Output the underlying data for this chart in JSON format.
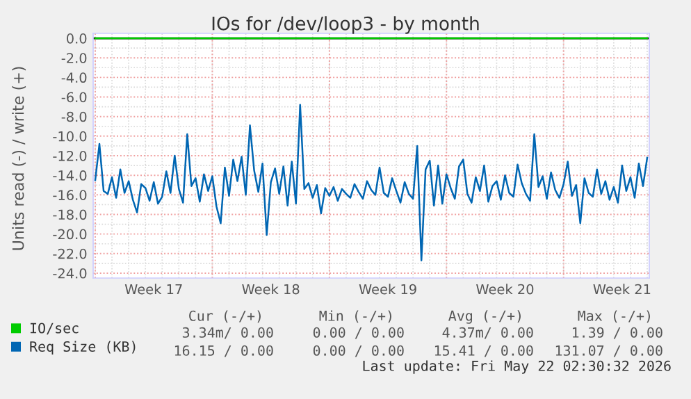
{
  "chart_data": {
    "type": "line",
    "title": "IOs for /dev/loop3 - by month",
    "ylabel": "Units read (-) / write (+)",
    "categories": [
      null,
      null,
      null,
      null,
      null,
      null,
      null,
      null,
      null,
      null,
      null,
      null,
      null,
      null,
      "Week 17",
      null,
      null,
      null,
      null,
      null,
      null,
      null,
      null,
      null,
      null,
      null,
      null,
      null,
      null,
      null,
      null,
      null,
      null,
      null,
      null,
      null,
      null,
      null,
      null,
      null,
      null,
      null,
      "Week 18",
      null,
      null,
      null,
      null,
      null,
      null,
      null,
      null,
      null,
      null,
      null,
      null,
      null,
      null,
      null,
      null,
      null,
      null,
      null,
      null,
      null,
      null,
      null,
      null,
      null,
      null,
      null,
      "Week 19",
      null,
      null,
      null,
      null,
      null,
      null,
      null,
      null,
      null,
      null,
      null,
      null,
      null,
      null,
      null,
      null,
      null,
      null,
      null,
      null,
      null,
      null,
      null,
      null,
      null,
      null,
      null,
      "Week 20",
      null,
      null,
      null,
      null,
      null,
      null,
      null,
      null,
      null,
      null,
      null,
      null,
      null,
      null,
      null,
      null,
      null,
      null,
      null,
      null,
      null,
      null,
      null,
      null,
      null,
      null,
      null,
      "Week 21",
      null,
      null,
      null,
      null,
      null,
      null
    ],
    "ylim": [
      -24.5,
      0.5
    ],
    "yticks": [
      {
        "value": 0,
        "label": "0.0"
      },
      {
        "value": -2,
        "label": "-2.0"
      },
      {
        "value": -4,
        "label": "-4.0"
      },
      {
        "value": -6,
        "label": "-6.0"
      },
      {
        "value": -8,
        "label": "-8.0"
      },
      {
        "value": -10,
        "label": "-10.0"
      },
      {
        "value": -12,
        "label": "-12.0"
      },
      {
        "value": -14,
        "label": "-14.0"
      },
      {
        "value": -16,
        "label": "-16.0"
      },
      {
        "value": -18,
        "label": "-18.0"
      },
      {
        "value": -20,
        "label": "-20.0"
      },
      {
        "value": -22,
        "label": "-22.0"
      },
      {
        "value": -24,
        "label": "-24.0"
      }
    ],
    "grid": true,
    "legend": "bottom",
    "ref_lines": [
      {
        "axis": "y",
        "value": 0,
        "color": "#000000"
      }
    ],
    "series": [
      {
        "name": "IO/sec",
        "color": "#00cc00",
        "values": [
          0,
          0,
          0,
          0,
          0,
          0,
          0,
          0,
          0,
          0,
          0,
          0,
          0,
          0,
          0,
          0,
          0,
          0,
          0,
          0,
          0,
          0,
          0,
          0,
          0,
          0,
          0,
          0,
          0,
          0,
          0,
          0,
          0,
          0,
          0,
          0,
          0,
          0,
          0,
          0,
          0,
          0,
          0,
          0,
          0,
          0,
          0,
          0,
          0,
          0,
          0,
          0,
          0,
          0,
          0,
          0,
          0,
          0,
          0,
          0,
          0,
          0,
          0,
          0,
          0,
          0,
          0,
          0,
          0,
          0,
          0,
          0,
          0,
          0,
          0,
          0,
          0,
          0,
          0,
          0,
          0,
          0,
          0,
          0,
          0,
          0,
          0,
          0,
          0,
          0,
          0,
          0,
          0,
          0,
          0,
          0,
          0,
          0,
          0,
          0,
          0,
          0,
          0,
          0,
          0,
          0,
          0,
          0,
          0,
          0,
          0,
          0,
          0,
          0,
          0,
          0,
          0,
          0,
          0,
          0,
          0,
          0,
          0,
          0,
          0,
          0,
          0,
          0,
          0,
          0,
          0,
          0,
          0
        ]
      },
      {
        "name": "Req Size (KB)",
        "color": "#0066b3",
        "values": [
          -14.5,
          -10.8,
          -15.6,
          -15.9,
          -14.2,
          -16.3,
          -13.4,
          -15.8,
          -14.6,
          -16.5,
          -17.8,
          -14.9,
          -15.3,
          -16.6,
          -14.7,
          -16.9,
          -16.2,
          -13.6,
          -15.8,
          -12.0,
          -15.4,
          -16.8,
          -9.8,
          -15.1,
          -14.3,
          -16.7,
          -13.9,
          -15.6,
          -14.1,
          -17.2,
          -18.9,
          -13.2,
          -16.1,
          -12.4,
          -14.6,
          -12.1,
          -16.0,
          -8.9,
          -13.5,
          -15.7,
          -12.8,
          -20.1,
          -14.7,
          -13.3,
          -15.9,
          -13.1,
          -17.1,
          -12.6,
          -16.9,
          -6.8,
          -15.4,
          -14.8,
          -16.3,
          -15.0,
          -17.9,
          -15.3,
          -16.1,
          -15.2,
          -16.6,
          -15.4,
          -15.9,
          -16.3,
          -14.9,
          -15.7,
          -16.4,
          -14.6,
          -15.5,
          -16.0,
          -13.2,
          -15.8,
          -16.2,
          -14.3,
          -15.6,
          -16.8,
          -14.7,
          -15.9,
          -16.4,
          -11.0,
          -22.7,
          -13.4,
          -12.5,
          -17.1,
          -13.0,
          -16.9,
          -13.9,
          -15.3,
          -16.4,
          -13.1,
          -12.4,
          -15.9,
          -16.8,
          -14.2,
          -15.6,
          -13.0,
          -16.7,
          -15.1,
          -14.6,
          -16.5,
          -14.0,
          -15.8,
          -16.2,
          -12.9,
          -14.8,
          -15.9,
          -16.6,
          -9.8,
          -15.2,
          -14.1,
          -16.4,
          -13.7,
          -15.5,
          -16.3,
          -14.9,
          -12.6,
          -16.1,
          -15.0,
          -18.9,
          -14.3,
          -15.8,
          -16.2,
          -13.4,
          -15.9,
          -14.6,
          -16.5,
          -15.2,
          -16.8,
          -13.0,
          -15.6,
          -14.2,
          -16.3,
          -12.8,
          -15.1,
          -12.2
        ]
      }
    ],
    "annotations": [
      "Cur (-/+)",
      "Min (-/+)",
      "Avg (-/+)",
      "Max (-/+)",
      "3.34m/ 0.00",
      "0.00 / 0.00",
      "4.37m/ 0.00",
      "1.39 / 0.00",
      "16.15 / 0.00",
      "0.00 / 0.00",
      "15.41 / 0.00",
      "131.07 / 0.00",
      "Last update: Fri May 22 02:30:32 2026"
    ]
  }
}
